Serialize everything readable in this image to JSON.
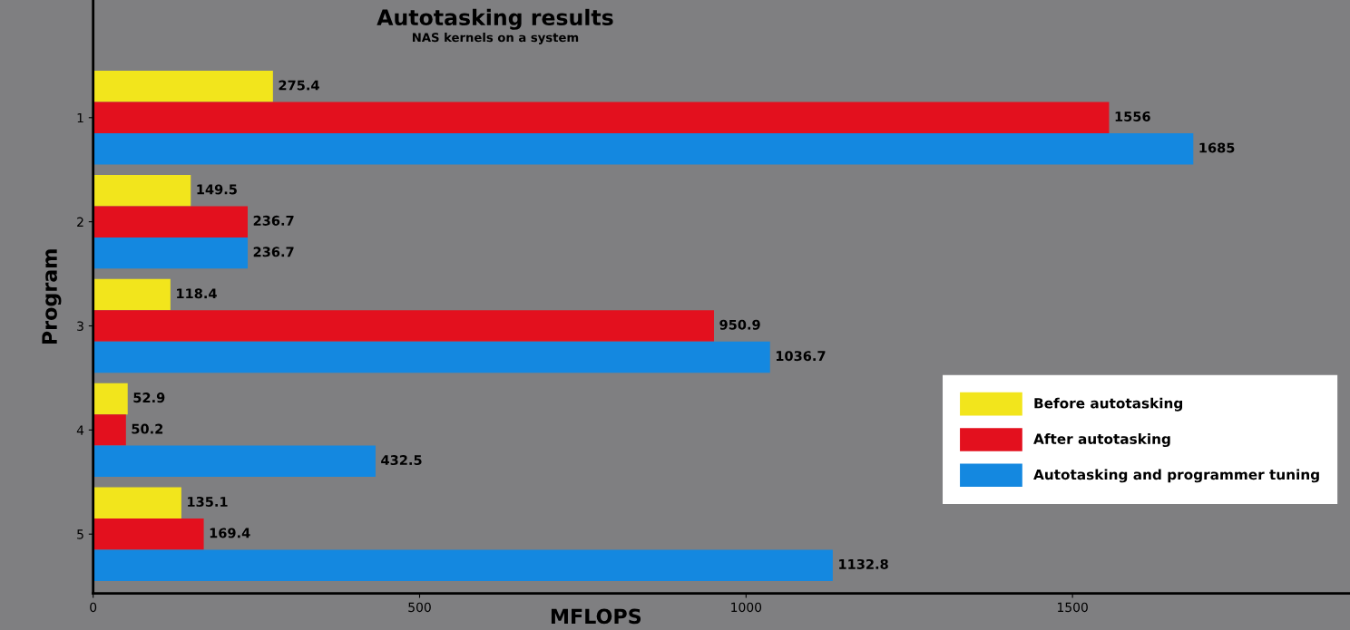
{
  "chart_data": {
    "type": "bar",
    "orientation": "horizontal",
    "title": "Autotasking results",
    "subtitle": "NAS kernels on a system",
    "xlabel": "MFLOPS",
    "ylabel": "Program",
    "categories": [
      "1",
      "2",
      "3",
      "4",
      "5"
    ],
    "series": [
      {
        "name": "Before autotasking",
        "color": "#f2e51c",
        "values": [
          275.4,
          149.5,
          118.4,
          52.9,
          135.1
        ]
      },
      {
        "name": "After autotasking",
        "color": "#e3101e",
        "values": [
          1556,
          236.7,
          950.9,
          50.2,
          169.4
        ]
      },
      {
        "name": "Autotasking and programmer tuning",
        "color": "#1488e0",
        "values": [
          1685,
          236.7,
          1036.7,
          432.5,
          1132.8
        ]
      }
    ],
    "xlim": [
      0,
      1925
    ],
    "xticks": [
      0,
      500,
      1000,
      1500
    ],
    "data_labels": true,
    "legend": "bottom right",
    "grid": false
  }
}
